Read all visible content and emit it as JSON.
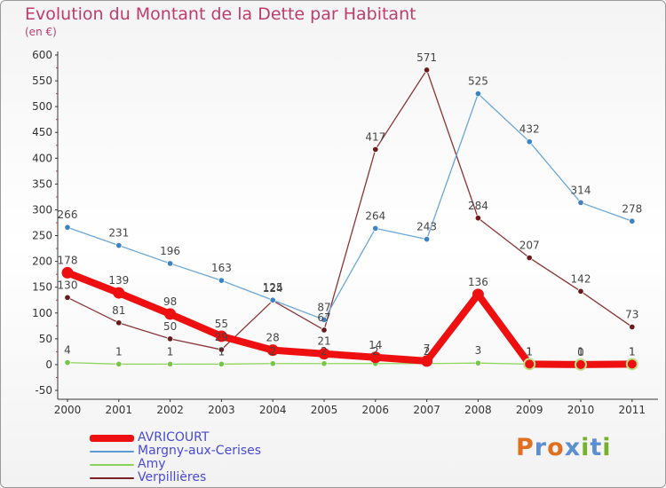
{
  "header": {
    "title": "Evolution du Montant de la Dette par Habitant",
    "unit": "(en €)"
  },
  "logo": {
    "letters": [
      "P",
      "r",
      "o",
      "x",
      "i",
      "t",
      "i"
    ],
    "colors": [
      "#e0701f",
      "#5b8fd0",
      "#e0701f",
      "#5b8fd0",
      "#77b02e",
      "#5b8fd0",
      "#77b02e"
    ]
  },
  "chart_data": {
    "type": "line",
    "categories": [
      "2000",
      "2001",
      "2002",
      "2003",
      "2004",
      "2005",
      "2006",
      "2007",
      "2008",
      "2009",
      "2010",
      "2011"
    ],
    "ylim": [
      -50,
      600
    ],
    "ytick_step": 50,
    "grid": false,
    "legend_position": "bottom-left",
    "series": [
      {
        "name": "AVRICOURT",
        "color": "#ee1010",
        "values": [
          178,
          139,
          98,
          55,
          28,
          21,
          14,
          7,
          136,
          1,
          0,
          1
        ]
      },
      {
        "name": "Margny-aux-Cerises",
        "color": "#5b9bd5",
        "values": [
          266,
          231,
          196,
          163,
          125,
          87,
          264,
          243,
          525,
          432,
          314,
          278
        ]
      },
      {
        "name": "Amy",
        "color": "#88d45a",
        "values": [
          4,
          1,
          1,
          1,
          2,
          2,
          2,
          2,
          3,
          1,
          1,
          1
        ]
      },
      {
        "name": "Verpillières",
        "color": "#7b2222",
        "values": [
          130,
          81,
          50,
          29,
          124,
          67,
          417,
          571,
          284,
          207,
          142,
          73
        ]
      }
    ]
  }
}
